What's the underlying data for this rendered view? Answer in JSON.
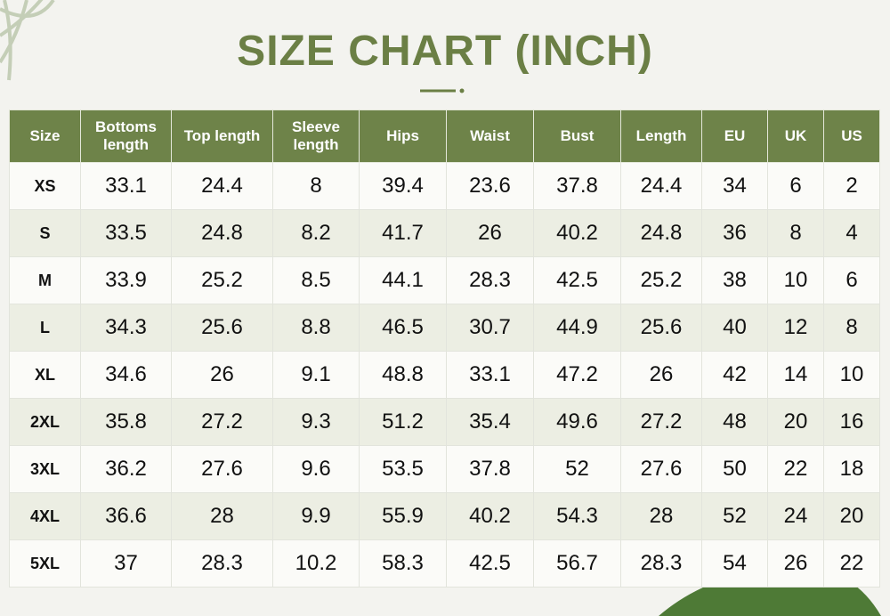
{
  "header": {
    "title": "SIZE CHART (INCH)"
  },
  "table": {
    "columns": [
      "Size",
      "Bottoms length",
      "Top length",
      "Sleeve length",
      "Hips",
      "Waist",
      "Bust",
      "Length",
      "EU",
      "UK",
      "US"
    ],
    "rows": [
      [
        "XS",
        "33.1",
        "24.4",
        "8",
        "39.4",
        "23.6",
        "37.8",
        "24.4",
        "34",
        "6",
        "2"
      ],
      [
        "S",
        "33.5",
        "24.8",
        "8.2",
        "41.7",
        "26",
        "40.2",
        "24.8",
        "36",
        "8",
        "4"
      ],
      [
        "M",
        "33.9",
        "25.2",
        "8.5",
        "44.1",
        "28.3",
        "42.5",
        "25.2",
        "38",
        "10",
        "6"
      ],
      [
        "L",
        "34.3",
        "25.6",
        "8.8",
        "46.5",
        "30.7",
        "44.9",
        "25.6",
        "40",
        "12",
        "8"
      ],
      [
        "XL",
        "34.6",
        "26",
        "9.1",
        "48.8",
        "33.1",
        "47.2",
        "26",
        "42",
        "14",
        "10"
      ],
      [
        "2XL",
        "35.8",
        "27.2",
        "9.3",
        "51.2",
        "35.4",
        "49.6",
        "27.2",
        "48",
        "20",
        "16"
      ],
      [
        "3XL",
        "36.2",
        "27.6",
        "9.6",
        "53.5",
        "37.8",
        "52",
        "27.6",
        "50",
        "22",
        "18"
      ],
      [
        "4XL",
        "36.6",
        "28",
        "9.9",
        "55.9",
        "40.2",
        "54.3",
        "28",
        "52",
        "24",
        "20"
      ],
      [
        "5XL",
        "37",
        "28.3",
        "10.2",
        "58.3",
        "42.5",
        "56.7",
        "28.3",
        "54",
        "26",
        "22"
      ]
    ]
  }
}
